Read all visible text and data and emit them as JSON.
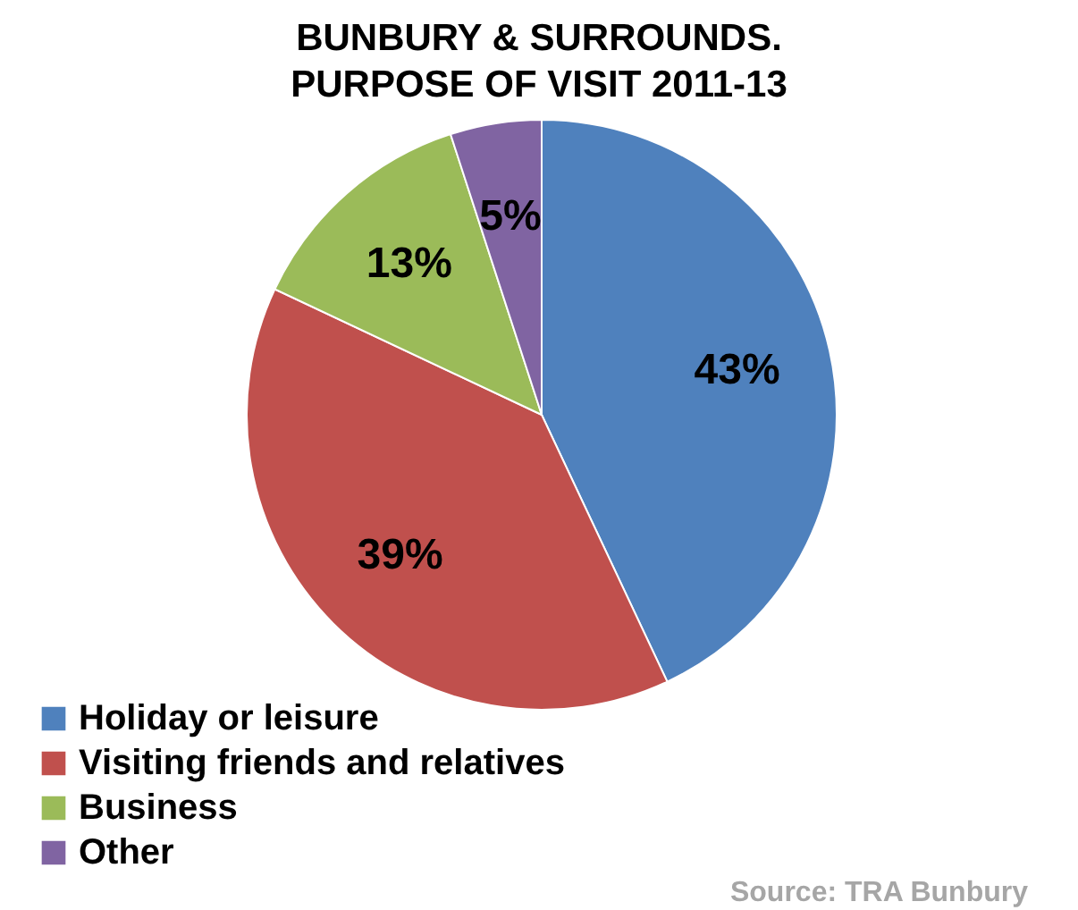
{
  "chart_data": {
    "type": "pie",
    "title": [
      "BUNBURY & SURROUNDS.",
      "PURPOSE OF VISIT 2011-13"
    ],
    "categories": [
      "Holiday or leisure",
      "Visiting friends and relatives",
      "Business",
      "Other"
    ],
    "values": [
      43,
      39,
      13,
      5
    ],
    "value_labels": [
      "43%",
      "39%",
      "13%",
      "5%"
    ],
    "colors": [
      "#4f81bd",
      "#c0504d",
      "#9bbb59",
      "#8064a2"
    ],
    "legend": "bottom left",
    "annotations": [
      "Source:  TRA Bunbury"
    ]
  }
}
